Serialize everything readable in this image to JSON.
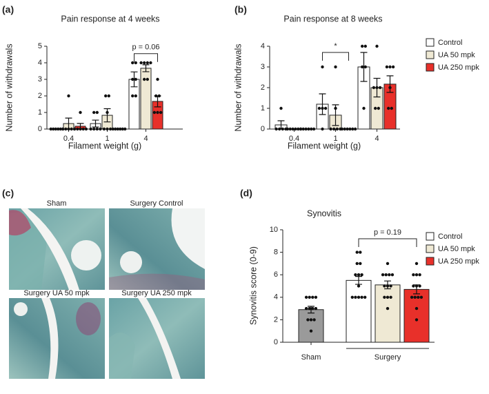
{
  "chart_data": [
    {
      "type": "bar",
      "panel": "(a)",
      "title": "Pain response at 4 weeks",
      "xlabel": "Filament weight (g)",
      "ylabel": "Number of withdrawals",
      "categories": [
        "0.4",
        "1",
        "4"
      ],
      "series": [
        {
          "color": "#ffffff",
          "values": [
            0,
            0.33,
            3.0
          ],
          "errors": [
            0,
            0.21,
            0.45
          ],
          "points": [
            [
              0,
              0,
              0,
              0,
              0,
              0
            ],
            [
              0,
              0,
              0,
              0,
              1,
              1
            ],
            [
              2,
              2,
              3,
              3,
              4,
              4
            ]
          ]
        },
        {
          "color": "#efe9d4",
          "values": [
            0.33,
            0.83,
            3.67
          ],
          "errors": [
            0.33,
            0.4,
            0.21
          ],
          "points": [
            [
              0,
              0,
              0,
              0,
              0,
              2
            ],
            [
              0,
              0,
              0,
              1,
              2,
              2
            ],
            [
              3,
              3,
              4,
              4,
              4,
              4
            ]
          ]
        },
        {
          "color": "#e8302a",
          "values": [
            0.17,
            0,
            1.67
          ],
          "errors": [
            0.17,
            0,
            0.33
          ],
          "points": [
            [
              0,
              0,
              0,
              0,
              0,
              1
            ],
            [
              0,
              0,
              0,
              0,
              0,
              0
            ],
            [
              1,
              1,
              1,
              2,
              2,
              3
            ]
          ]
        }
      ],
      "ylim": [
        0,
        5
      ],
      "yticks": [
        0,
        1,
        2,
        3,
        4,
        5
      ],
      "annotations": [
        {
          "text": "p = 0.06"
        }
      ]
    },
    {
      "type": "bar",
      "panel": "(b)",
      "title": "Pain response at 8 weeks",
      "xlabel": "Filament weight (g)",
      "ylabel": "Number of withdrawals",
      "categories": [
        "0.4",
        "1",
        "4"
      ],
      "series": [
        {
          "name": "Control",
          "color": "#ffffff",
          "values": [
            0.2,
            1.2,
            3.0
          ],
          "errors": [
            0.2,
            0.5,
            0.7
          ],
          "points": [
            [
              0,
              0,
              0,
              0,
              1
            ],
            [
              0,
              1,
              1,
              1,
              3
            ],
            [
              1,
              3,
              3,
              4,
              4
            ]
          ]
        },
        {
          "name": "UA 50 mpk",
          "color": "#efe9d4",
          "values": [
            0,
            0.67,
            2.0
          ],
          "errors": [
            0,
            0.5,
            0.45
          ],
          "points": [
            [
              0,
              0,
              0,
              0,
              0,
              0
            ],
            [
              0,
              0,
              0,
              0,
              1,
              3
            ],
            [
              1,
              1,
              2,
              2,
              2,
              4
            ]
          ]
        },
        {
          "name": "UA 250 mpk",
          "color": "#e8302a",
          "values": [
            0,
            0,
            2.17
          ],
          "errors": [
            0,
            0,
            0.4
          ],
          "points": [
            [
              0,
              0,
              0,
              0,
              0,
              0
            ],
            [
              0,
              0,
              0,
              0,
              0,
              0
            ],
            [
              1,
              1,
              2,
              3,
              3,
              3
            ]
          ]
        }
      ],
      "ylim": [
        0,
        4
      ],
      "yticks": [
        0,
        1,
        2,
        3,
        4
      ],
      "legend": "right",
      "annotations": [
        {
          "text": "*"
        }
      ]
    },
    {
      "type": "bar",
      "panel": "(d)",
      "title": "Synovitis",
      "ylabel": "Synovitis score (0-9)",
      "categories": [
        "Sham",
        "Surgery"
      ],
      "series": [
        {
          "color": "#9a9a9a",
          "values": [
            2.9,
            null
          ],
          "errors": [
            0.3,
            null
          ],
          "points": [
            [
              1,
              2,
              2,
              2,
              3,
              3,
              3,
              3,
              4,
              4,
              4,
              4
            ],
            null
          ]
        },
        {
          "name": "Control",
          "color": "#ffffff",
          "values": [
            null,
            5.5
          ],
          "errors": [
            null,
            0.35
          ],
          "points": [
            null,
            [
              4,
              4,
              4,
              4,
              4,
              5,
              6,
              6,
              6,
              7,
              7,
              8,
              8
            ]
          ]
        },
        {
          "name": "UA 50 mpk",
          "color": "#efe9d4",
          "values": [
            null,
            5.1
          ],
          "errors": [
            null,
            0.35
          ],
          "points": [
            null,
            [
              3,
              4,
              4,
              4,
              5,
              5,
              5,
              6,
              6,
              6,
              6,
              7
            ]
          ]
        },
        {
          "name": "UA 250 mpk",
          "color": "#e8302a",
          "values": [
            null,
            4.7
          ],
          "errors": [
            null,
            0.4
          ],
          "points": [
            null,
            [
              2,
              3,
              4,
              4,
              4,
              4,
              5,
              5,
              5,
              6,
              6,
              6,
              7
            ]
          ]
        }
      ],
      "ylim": [
        0,
        10
      ],
      "yticks": [
        0,
        2,
        4,
        6,
        8,
        10
      ],
      "legend": "right",
      "category_brackets": true,
      "annotations": [
        {
          "text": "p = 0.19"
        }
      ]
    }
  ],
  "micrographs": {
    "panel": "(c)",
    "images": [
      {
        "label": "Sham"
      },
      {
        "label": "Surgery Control"
      },
      {
        "label": "Surgery UA 50 mpk"
      },
      {
        "label": "Surgery UA 250 mpk"
      }
    ]
  }
}
